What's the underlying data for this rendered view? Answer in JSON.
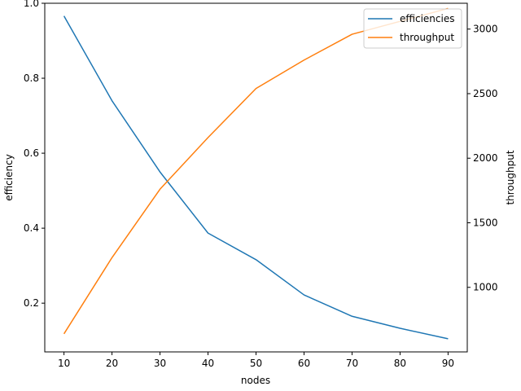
{
  "chart_data": {
    "type": "line",
    "x": [
      10,
      20,
      30,
      40,
      50,
      60,
      70,
      80,
      90
    ],
    "xlabel": "nodes",
    "ylabel_left": "efficiency",
    "ylabel_right": "throughput",
    "xlim": [
      6,
      94
    ],
    "ylim_left": [
      0.07,
      1.0
    ],
    "ylim_right": [
      500,
      3200
    ],
    "xticks": [
      "10",
      "20",
      "30",
      "40",
      "50",
      "60",
      "70",
      "80",
      "90"
    ],
    "yticks_left": [
      "0.2",
      "0.4",
      "0.6",
      "0.8",
      "1.0"
    ],
    "yticks_right": [
      "1000",
      "1500",
      "2000",
      "2500",
      "3000"
    ],
    "grid": false,
    "legend_position": "top-right",
    "series": [
      {
        "name": "efficiencies",
        "axis": "left",
        "color": "#1f77b4",
        "values": [
          0.966,
          0.74,
          0.55,
          0.387,
          0.316,
          0.222,
          0.165,
          0.133,
          0.105
        ]
      },
      {
        "name": "throughput",
        "axis": "right",
        "color": "#ff7f0e",
        "values": [
          640,
          1230,
          1760,
          2160,
          2540,
          2760,
          2960,
          3060,
          3160
        ]
      }
    ]
  }
}
